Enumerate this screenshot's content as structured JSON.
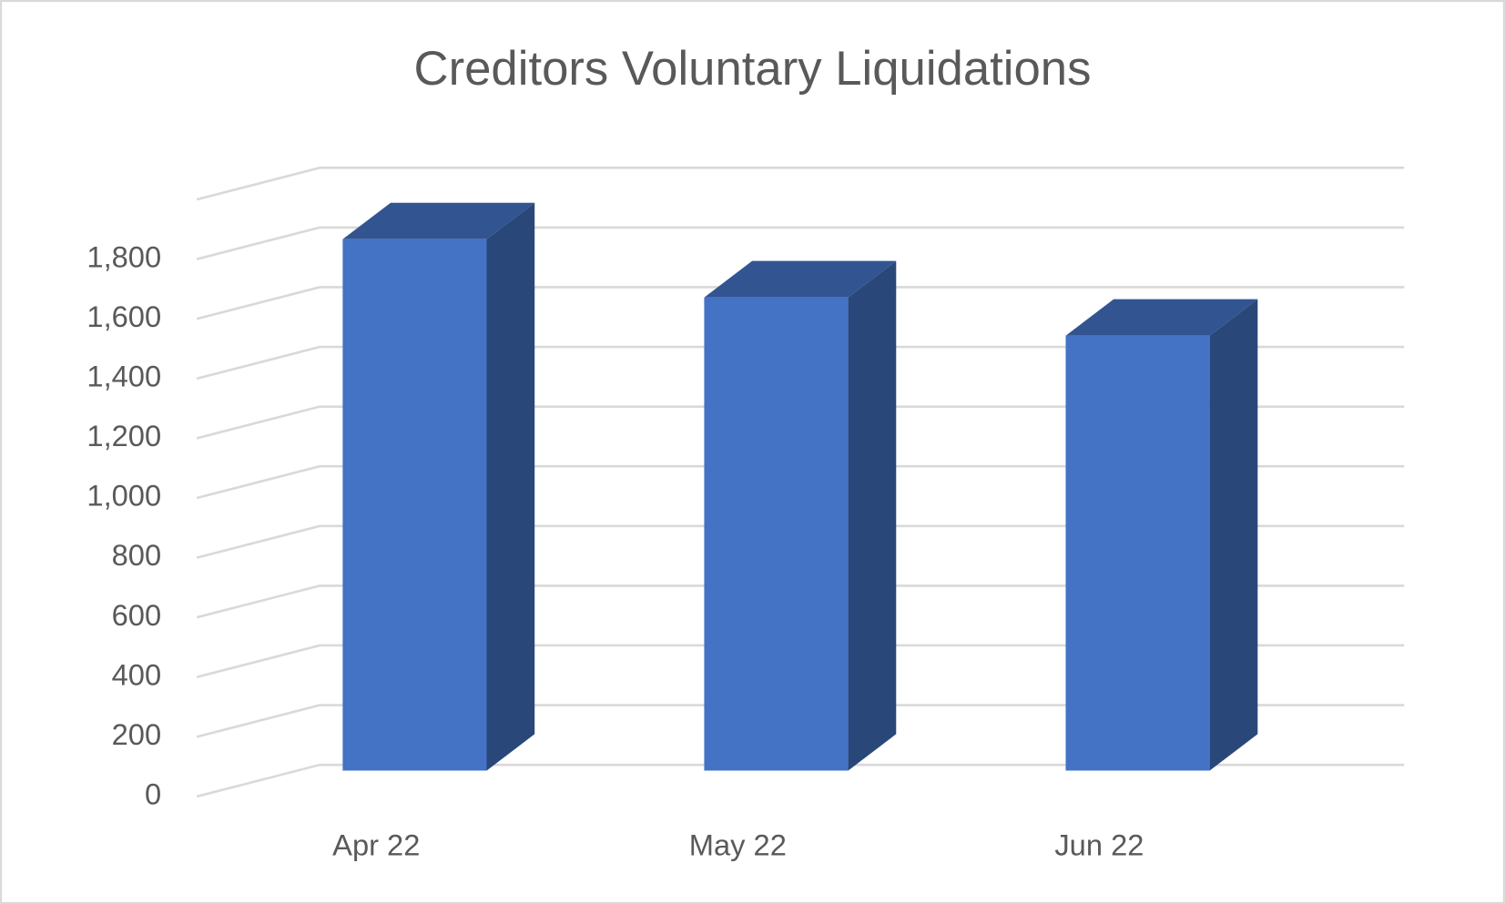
{
  "chart_data": {
    "type": "bar3d",
    "title": "Creditors Voluntary Liquidations",
    "categories": [
      "Apr 22",
      "May 22",
      "Jun 22"
    ],
    "values": [
      1780,
      1585,
      1457
    ],
    "color": "#4472c4",
    "ylim": [
      0,
      2000
    ],
    "yticks": [
      0,
      200,
      400,
      600,
      800,
      {
        "value": 1000,
        "label": "1,000"
      },
      {
        "value": 1200,
        "label": "1,200"
      },
      {
        "value": 1400,
        "label": "1,400"
      },
      {
        "value": 1600,
        "label": "1,600"
      },
      {
        "value": 1800,
        "label": "1,800"
      }
    ],
    "grid": true
  }
}
